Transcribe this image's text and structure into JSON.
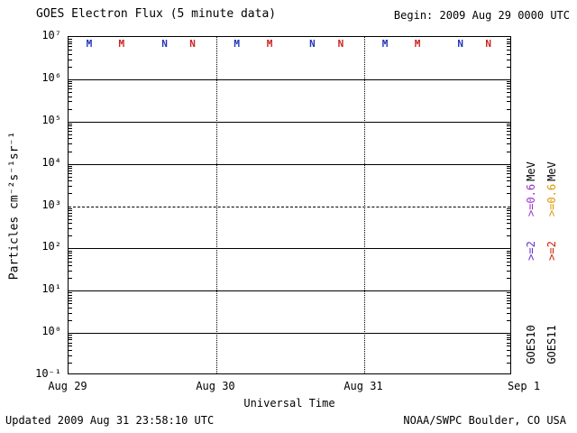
{
  "header": {
    "title": "GOES Electron Flux (5 minute data)",
    "begin": "Begin: 2009 Aug 29 0000 UTC"
  },
  "footer": {
    "updated": "Updated 2009 Aug 31 23:58:10 UTC",
    "credit": "NOAA/SWPC Boulder, CO USA"
  },
  "chart_data": {
    "type": "line",
    "title": "GOES Electron Flux (5 minute data)",
    "xlabel": "Universal Time",
    "ylabel": "Particles cm⁻²s⁻¹sr⁻¹",
    "x_tick_labels": [
      "Aug 29",
      "Aug 30",
      "Aug 31",
      "Sep 1"
    ],
    "y_tick_labels": [
      "10⁷",
      "10⁶",
      "10⁵",
      "10⁴",
      "10³",
      "10²",
      "10¹",
      "10⁰",
      "10⁻¹"
    ],
    "ylim_log10": [
      -1,
      7
    ],
    "dashed_gridline_log10": 3,
    "grid": true,
    "legend_position": "right",
    "series": [
      {
        "name": "GOES10 >=0.6 MeV",
        "color": "#9933cc",
        "values": []
      },
      {
        "name": "GOES10 >=2 MeV",
        "color": "#6633cc",
        "values": []
      },
      {
        "name": "GOES11 >=0.6 MeV",
        "color": "#dd9900",
        "values": []
      },
      {
        "name": "GOES11 >=2 MeV",
        "color": "#cc2200",
        "values": []
      }
    ],
    "status_letters": [
      {
        "x": 0.05,
        "char": "M",
        "color": "#2233bb"
      },
      {
        "x": 0.123,
        "char": "M",
        "color": "#cc2222"
      },
      {
        "x": 0.22,
        "char": "N",
        "color": "#2233bb"
      },
      {
        "x": 0.283,
        "char": "N",
        "color": "#cc2222"
      },
      {
        "x": 0.383,
        "char": "M",
        "color": "#2233bb"
      },
      {
        "x": 0.457,
        "char": "M",
        "color": "#cc2222"
      },
      {
        "x": 0.553,
        "char": "N",
        "color": "#2233bb"
      },
      {
        "x": 0.617,
        "char": "N",
        "color": "#cc2222"
      },
      {
        "x": 0.717,
        "char": "M",
        "color": "#2233bb"
      },
      {
        "x": 0.79,
        "char": "M",
        "color": "#cc2222"
      },
      {
        "x": 0.887,
        "char": "N",
        "color": "#2233bb"
      },
      {
        "x": 0.95,
        "char": "N",
        "color": "#cc2222"
      }
    ]
  },
  "legend": {
    "columns": [
      {
        "satellite": "GOES10",
        "unit": "MeV",
        "entries": [
          {
            "text": ">=0.6",
            "color": "#9933cc"
          },
          {
            "text": ">=2",
            "color": "#6633cc"
          }
        ]
      },
      {
        "satellite": "GOES11",
        "unit": "MeV",
        "entries": [
          {
            "text": ">=0.6",
            "color": "#dd9900"
          },
          {
            "text": ">=2",
            "color": "#cc2200"
          }
        ]
      }
    ]
  }
}
